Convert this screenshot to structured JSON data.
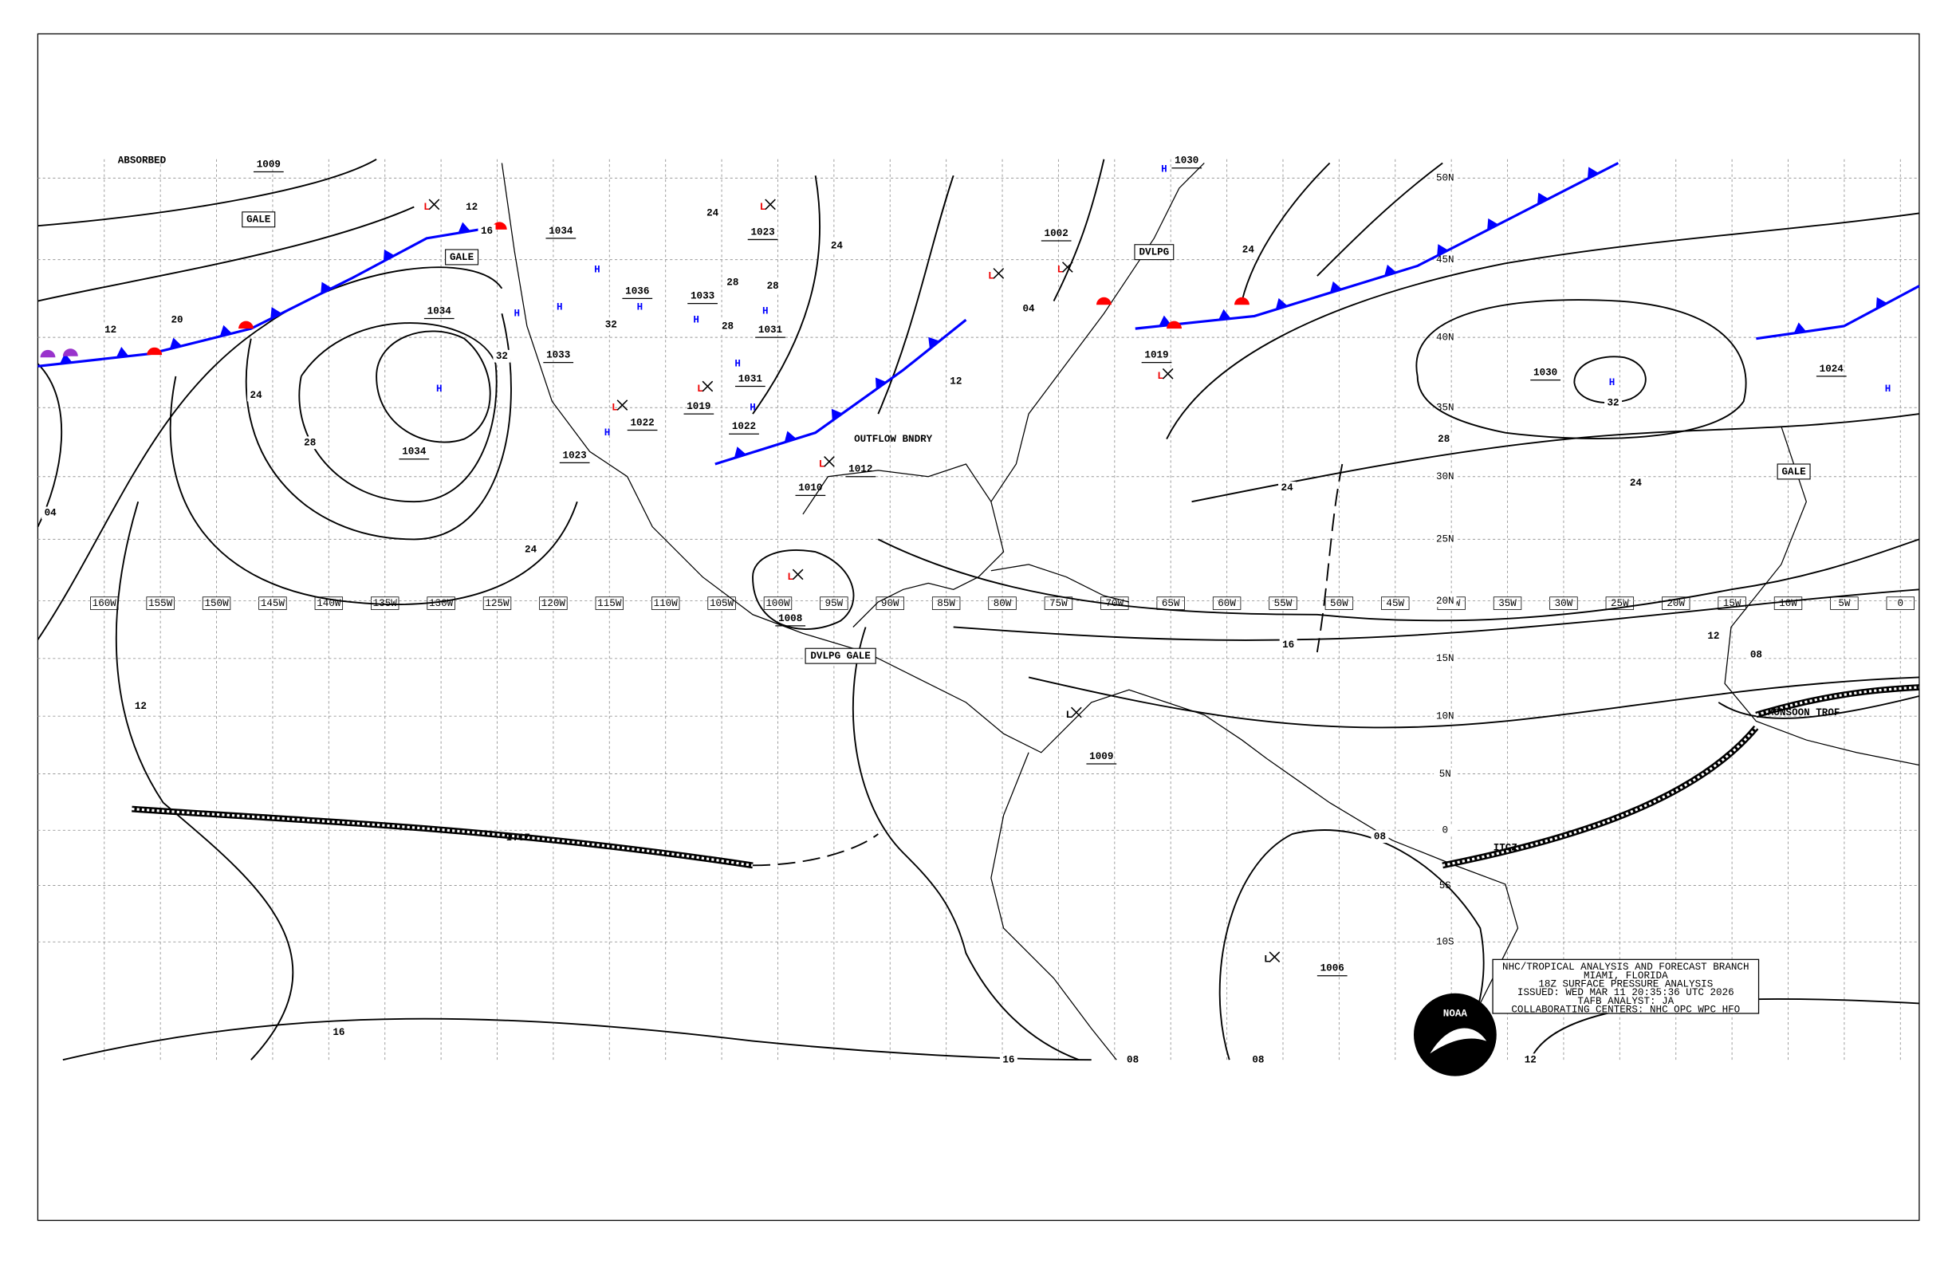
{
  "title_block": [
    "NHC/TROPICAL ANALYSIS AND FORECAST BRANCH",
    "MIAMI, FLORIDA",
    "18Z SURFACE PRESSURE ANALYSIS",
    "ISSUED: WED MAR 11 20:35:36 UTC 2026",
    "TAFB ANALYST: JA",
    "COLLABORATING CENTERS: NHC OPC WPC HFO"
  ],
  "logo_text": "NOAA",
  "longitude_labels": [
    "160W",
    "155W",
    "150W",
    "145W",
    "140W",
    "135W",
    "130W",
    "125W",
    "120W",
    "115W",
    "110W",
    "105W",
    "100W",
    "95W",
    "90W",
    "85W",
    "80W",
    "75W",
    "70W",
    "65W",
    "60W",
    "55W",
    "50W",
    "45W",
    "40W",
    "35W",
    "30W",
    "25W",
    "20W",
    "15W",
    "10W",
    "5W",
    "0"
  ],
  "latitude_labels": [
    "50N",
    "45N",
    "40N",
    "35N",
    "30N",
    "25N",
    "20N",
    "15N",
    "10N",
    "5N",
    "0",
    "5S",
    "10S"
  ],
  "highs": [
    "H",
    "H",
    "H",
    "H",
    "H",
    "H",
    "H",
    "H",
    "H",
    "H",
    "H",
    "H",
    "H"
  ],
  "lows": [
    "L",
    "L",
    "L",
    "L",
    "L",
    "L",
    "L",
    "L",
    "L",
    "L",
    "L"
  ],
  "center_pressures": [
    "1009",
    "1034",
    "1034",
    "1033",
    "1034",
    "1036",
    "1033",
    "1031",
    "1031",
    "1022",
    "1019",
    "1022",
    "1023",
    "1023",
    "1002",
    "1019",
    "1030",
    "1030",
    "1012",
    "1010",
    "1008",
    "1009",
    "1006",
    "1024"
  ],
  "isobar_labels": [
    "12",
    "16",
    "20",
    "12",
    "24",
    "28",
    "32",
    "24",
    "12",
    "16",
    "16",
    "04",
    "24",
    "24",
    "28",
    "28",
    "32",
    "28",
    "12",
    "04",
    "24",
    "24",
    "28",
    "24",
    "32",
    "16",
    "12",
    "08",
    "08",
    "12",
    "08",
    "08"
  ],
  "features": [
    "ABSORBED",
    "GALE",
    "GALE",
    "DVLPG GALE",
    "OUTFLOW BNDRY",
    "ITCZ",
    "ITCZ",
    "MONSOON TROF",
    "GALE",
    "DVLPG"
  ]
}
